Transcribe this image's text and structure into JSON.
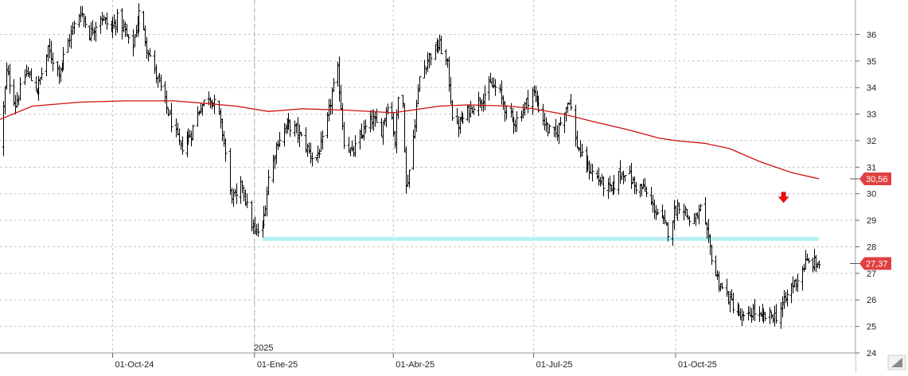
{
  "chart_data": {
    "type": "line",
    "subtype": "ohlc-bars-with-moving-average",
    "x_tick_labels": [
      "01-Oct-24",
      "01-Ene-25",
      "01-Abr-25",
      "01-Jul-25",
      "01-Oct-25"
    ],
    "x_tick_dates": [
      "2024-10-01",
      "2025-01-01",
      "2025-04-01",
      "2025-07-01",
      "2025-10-01"
    ],
    "year_marker": {
      "label": "2025",
      "date": "2025-01-01"
    },
    "y_tick_labels": [
      "36",
      "35",
      "34",
      "33",
      "32",
      "31",
      "30",
      "29",
      "28",
      "27",
      "26",
      "25",
      "24"
    ],
    "ylim": [
      24,
      37.3
    ],
    "xlim": [
      "2024-07-20",
      "2026-01-22"
    ],
    "grid": true,
    "last_price_label": "27,37",
    "ma_last_label": "30,56",
    "price_path": [
      [
        "2024-07-20",
        31.8
      ],
      [
        "2024-07-24",
        34.6
      ],
      [
        "2024-07-30",
        33.4
      ],
      [
        "2024-08-06",
        34.6
      ],
      [
        "2024-08-13",
        33.9
      ],
      [
        "2024-08-20",
        35.4
      ],
      [
        "2024-08-27",
        34.6
      ],
      [
        "2024-09-03",
        35.9
      ],
      [
        "2024-09-10",
        36.9
      ],
      [
        "2024-09-16",
        36.0
      ],
      [
        "2024-09-23",
        36.7
      ],
      [
        "2024-09-30",
        36.2
      ],
      [
        "2024-10-04",
        36.6
      ],
      [
        "2024-10-09",
        36.1
      ],
      [
        "2024-10-13",
        35.3
      ],
      [
        "2024-10-18",
        36.8
      ],
      [
        "2024-10-23",
        35.6
      ],
      [
        "2024-10-28",
        34.6
      ],
      [
        "2024-11-02",
        33.8
      ],
      [
        "2024-11-08",
        32.7
      ],
      [
        "2024-11-14",
        31.7
      ],
      [
        "2024-11-21",
        32.3
      ],
      [
        "2024-11-26",
        33.2
      ],
      [
        "2024-12-02",
        33.7
      ],
      [
        "2024-12-08",
        33.2
      ],
      [
        "2024-12-12",
        32.0
      ],
      [
        "2024-12-16",
        30.0
      ],
      [
        "2024-12-20",
        29.8
      ],
      [
        "2024-12-24",
        30.4
      ],
      [
        "2024-12-28",
        29.2
      ],
      [
        "2025-01-01",
        28.5
      ],
      [
        "2025-01-06",
        28.7
      ],
      [
        "2025-01-10",
        30.6
      ],
      [
        "2025-01-16",
        32.0
      ],
      [
        "2025-01-22",
        32.6
      ],
      [
        "2025-01-28",
        32.4
      ],
      [
        "2025-02-03",
        31.8
      ],
      [
        "2025-02-09",
        31.2
      ],
      [
        "2025-02-15",
        32.1
      ],
      [
        "2025-02-20",
        33.8
      ],
      [
        "2025-02-24",
        34.6
      ],
      [
        "2025-02-28",
        32.0
      ],
      [
        "2025-03-05",
        31.5
      ],
      [
        "2025-03-12",
        32.3
      ],
      [
        "2025-03-18",
        32.8
      ],
      [
        "2025-03-24",
        32.4
      ],
      [
        "2025-03-29",
        33.7
      ],
      [
        "2025-04-02",
        32.0
      ],
      [
        "2025-04-06",
        35.2
      ],
      [
        "2025-04-09",
        30.2
      ],
      [
        "2025-04-13",
        31.6
      ],
      [
        "2025-04-18",
        34.4
      ],
      [
        "2025-04-24",
        35.2
      ],
      [
        "2025-05-01",
        35.6
      ],
      [
        "2025-05-06",
        34.8
      ],
      [
        "2025-05-10",
        32.4
      ],
      [
        "2025-05-16",
        32.8
      ],
      [
        "2025-05-22",
        33.3
      ],
      [
        "2025-05-28",
        33.6
      ],
      [
        "2025-06-03",
        34.1
      ],
      [
        "2025-06-08",
        33.9
      ],
      [
        "2025-06-13",
        33.1
      ],
      [
        "2025-06-19",
        32.7
      ],
      [
        "2025-06-24",
        33.2
      ],
      [
        "2025-06-30",
        33.9
      ],
      [
        "2025-07-05",
        33.1
      ],
      [
        "2025-07-10",
        32.4
      ],
      [
        "2025-07-15",
        32.2
      ],
      [
        "2025-07-20",
        33.0
      ],
      [
        "2025-07-24",
        33.6
      ],
      [
        "2025-07-28",
        32.0
      ],
      [
        "2025-08-02",
        31.2
      ],
      [
        "2025-08-08",
        30.8
      ],
      [
        "2025-08-14",
        30.4
      ],
      [
        "2025-08-20",
        30.1
      ],
      [
        "2025-08-25",
        30.7
      ],
      [
        "2025-08-30",
        30.9
      ],
      [
        "2025-09-04",
        30.3
      ],
      [
        "2025-09-10",
        30.2
      ],
      [
        "2025-09-15",
        29.6
      ],
      [
        "2025-09-20",
        29.2
      ],
      [
        "2025-09-26",
        28.6
      ],
      [
        "2025-09-30",
        29.3
      ],
      [
        "2025-10-04",
        29.7
      ],
      [
        "2025-10-08",
        29.2
      ],
      [
        "2025-10-12",
        28.8
      ],
      [
        "2025-10-17",
        29.4
      ],
      [
        "2025-10-22",
        28.2
      ],
      [
        "2025-10-26",
        27.1
      ],
      [
        "2025-10-31",
        26.4
      ],
      [
        "2025-11-05",
        26.0
      ],
      [
        "2025-11-11",
        25.4
      ],
      [
        "2025-11-15",
        25.2
      ],
      [
        "2025-11-20",
        25.6
      ],
      [
        "2025-11-25",
        25.3
      ],
      [
        "2025-11-30",
        25.4
      ],
      [
        "2025-12-05",
        25.4
      ],
      [
        "2025-12-10",
        25.9
      ],
      [
        "2025-12-15",
        26.5
      ],
      [
        "2025-12-19",
        26.8
      ],
      [
        "2025-12-24",
        27.4
      ],
      [
        "2026-01-02",
        27.37
      ]
    ],
    "moving_average": [
      [
        "2024-07-20",
        32.8
      ],
      [
        "2024-08-10",
        33.3
      ],
      [
        "2024-09-10",
        33.45
      ],
      [
        "2024-10-10",
        33.5
      ],
      [
        "2024-11-10",
        33.5
      ],
      [
        "2024-12-01",
        33.4
      ],
      [
        "2024-12-20",
        33.3
      ],
      [
        "2025-01-10",
        33.1
      ],
      [
        "2025-02-01",
        33.2
      ],
      [
        "2025-03-01",
        33.15
      ],
      [
        "2025-04-01",
        33.05
      ],
      [
        "2025-05-01",
        33.3
      ],
      [
        "2025-05-20",
        33.35
      ],
      [
        "2025-06-15",
        33.3
      ],
      [
        "2025-07-01",
        33.2
      ],
      [
        "2025-07-20",
        33.0
      ],
      [
        "2025-08-10",
        32.7
      ],
      [
        "2025-09-01",
        32.4
      ],
      [
        "2025-09-20",
        32.1
      ],
      [
        "2025-10-01",
        32.0
      ],
      [
        "2025-10-20",
        31.9
      ],
      [
        "2025-11-05",
        31.7
      ],
      [
        "2025-11-25",
        31.2
      ],
      [
        "2025-12-15",
        30.8
      ],
      [
        "2026-01-02",
        30.56
      ]
    ],
    "support_level": {
      "value": 28.3,
      "from": "2025-01-06",
      "to": "2026-01-02"
    },
    "arrow_marker": {
      "date": "2025-12-10",
      "y": 29.8,
      "direction": "down"
    },
    "colors": {
      "bars": "#000000",
      "moving_average": "#cc1111",
      "badge": "#e04040",
      "support": "#b8f0f2",
      "arrow": "#e81010",
      "grid": "#c8c8c8"
    }
  }
}
